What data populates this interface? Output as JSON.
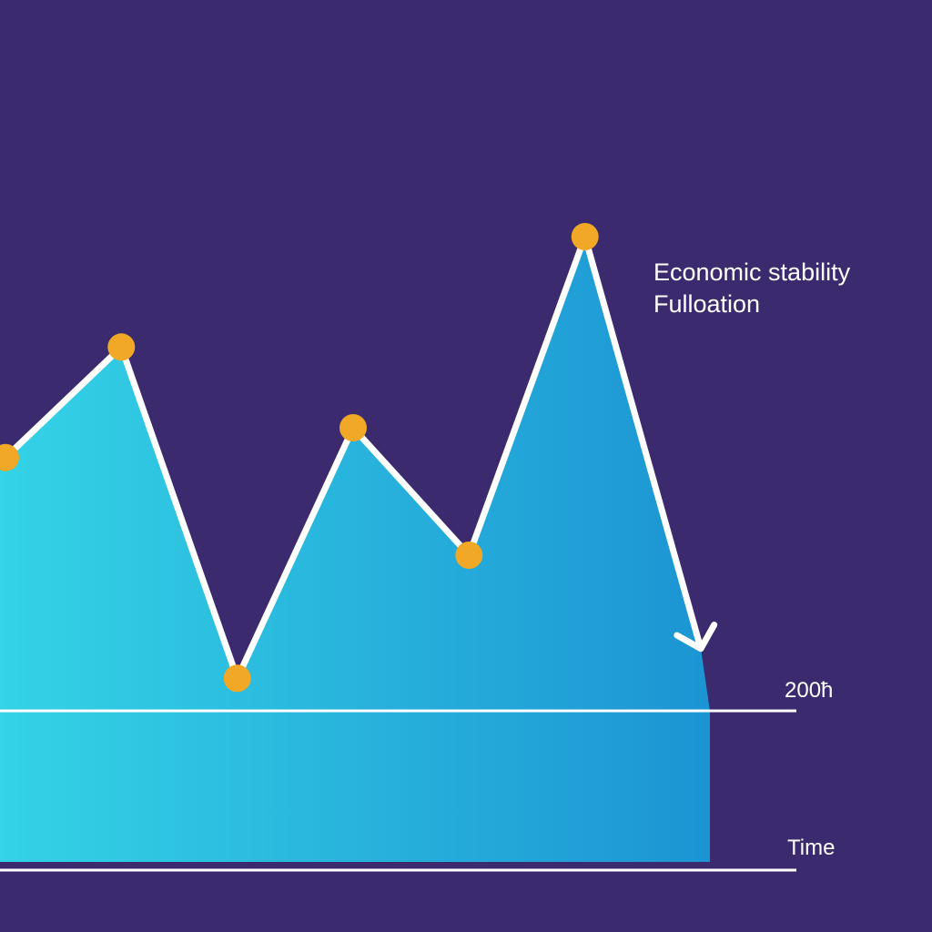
{
  "colors": {
    "background": "#3b2a6e",
    "area_start": "#34d3e6",
    "area_end": "#1c94d3",
    "line": "#ffffff",
    "marker": "#f0a826"
  },
  "chart_data": {
    "type": "area",
    "title_lines": [
      "Economic stability",
      "Fulloation"
    ],
    "baseline_label": "200ћ",
    "xlabel": "Time",
    "ylabel": "",
    "grid": false,
    "x": [
      0,
      1,
      2,
      3,
      4,
      5,
      6
    ],
    "y": [
      59,
      85,
      7,
      66,
      36,
      111,
      14
    ],
    "ylim": [
      0,
      120
    ],
    "markers_at": [
      0,
      1,
      2,
      3,
      4,
      5
    ],
    "end_arrow": true
  }
}
